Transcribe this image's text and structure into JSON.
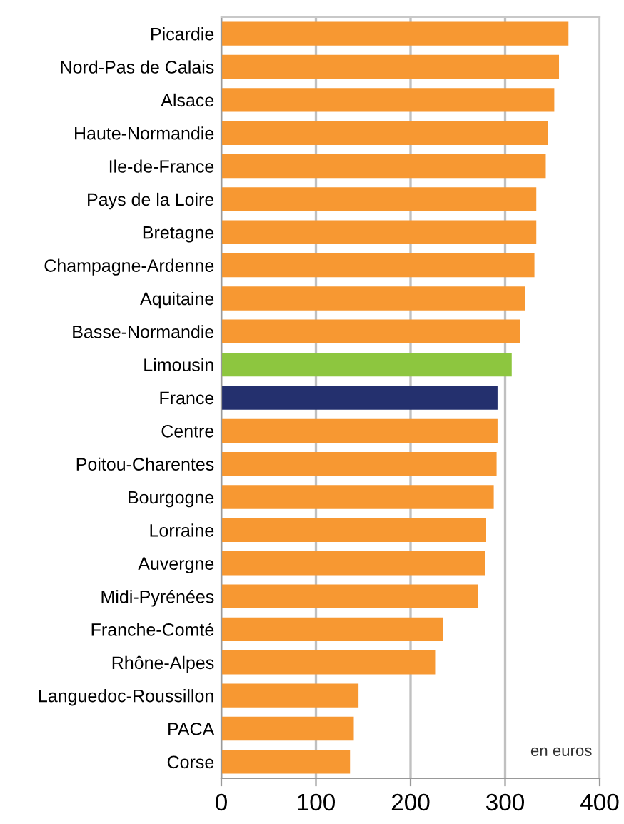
{
  "chart_data": {
    "type": "bar",
    "orientation": "horizontal",
    "categories": [
      "Picardie",
      "Nord-Pas de Calais",
      "Alsace",
      "Haute-Normandie",
      "Ile-de-France",
      "Pays de la Loire",
      "Bretagne",
      "Champagne-Ardenne",
      "Aquitaine",
      "Basse-Normandie",
      "Limousin",
      "France",
      "Centre",
      "Poitou-Charentes",
      "Bourgogne",
      "Lorraine",
      "Auvergne",
      "Midi-Pyrénées",
      "Franche-Comté",
      "Rhône-Alpes",
      "Languedoc-Roussillon",
      "PACA",
      "Corse"
    ],
    "values": [
      367,
      357,
      352,
      345,
      343,
      333,
      333,
      331,
      321,
      316,
      307,
      292,
      292,
      291,
      288,
      280,
      279,
      271,
      234,
      226,
      145,
      140,
      136
    ],
    "colors": [
      "#f79832",
      "#f79832",
      "#f79832",
      "#f79832",
      "#f79832",
      "#f79832",
      "#f79832",
      "#f79832",
      "#f79832",
      "#f79832",
      "#8dc63f",
      "#24306e",
      "#f79832",
      "#f79832",
      "#f79832",
      "#f79832",
      "#f79832",
      "#f79832",
      "#f79832",
      "#f79832",
      "#f79832",
      "#f79832",
      "#f79832"
    ],
    "xlim": [
      0,
      400
    ],
    "xticks": [
      0,
      100,
      200,
      300,
      400
    ],
    "grid": "x",
    "legend": false,
    "annotations": [
      "en euros"
    ]
  }
}
